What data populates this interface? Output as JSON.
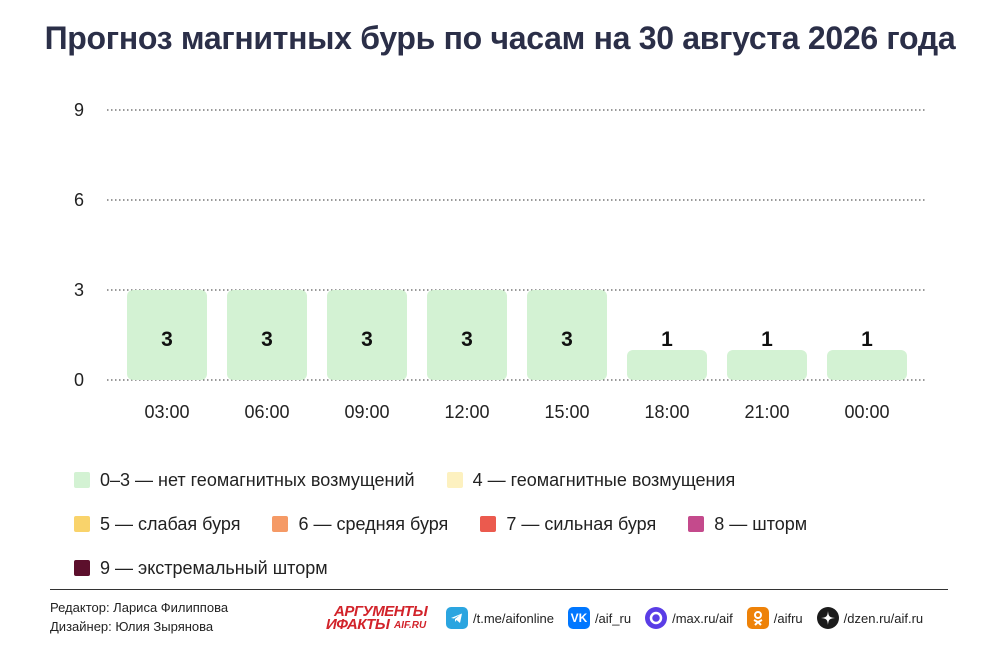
{
  "title": "Прогноз магнитных бурь по часам на 30 августа 2026 года",
  "chart_data": {
    "type": "bar",
    "title": "Прогноз магнитных бурь по часам на 30 августа 2026 года",
    "categories": [
      "03:00",
      "06:00",
      "09:00",
      "12:00",
      "15:00",
      "18:00",
      "21:00",
      "00:00"
    ],
    "values": [
      3,
      3,
      3,
      3,
      3,
      1,
      1,
      1
    ],
    "data_labels": [
      "3",
      "3",
      "3",
      "3",
      "3",
      "1",
      "1",
      "1"
    ],
    "yticks": [
      0,
      3,
      6,
      9
    ],
    "ylim": [
      0,
      9
    ],
    "grid": "dotted horizontal",
    "bar_color": "#d3f2d3",
    "xlabel": "",
    "ylabel": ""
  },
  "legend": [
    {
      "label": "0–3 — нет геомагнитных возмущений",
      "color": "#d3f2d3"
    },
    {
      "label": "4 — геомагнитные возмущения",
      "color": "#fdf1c0"
    },
    {
      "label": "5 — слабая буря",
      "color": "#f9d36b"
    },
    {
      "label": "6 — средняя буря",
      "color": "#f59a66"
    },
    {
      "label": "7 — сильная буря",
      "color": "#eb5a4e"
    },
    {
      "label": "8 — шторм",
      "color": "#c44a8c"
    },
    {
      "label": "9 — экстремальный шторм",
      "color": "#5c0f2c"
    }
  ],
  "footer": {
    "editor": "Редактор: Лариса Филиппова",
    "designer": "Дизайнер: Юлия Зырянова",
    "brand_line1": "АРГУМЕНТЫ",
    "brand_line2": "ИФАКТЫ",
    "brand_line3": "AIF.RU",
    "socials": [
      {
        "icon": "telegram-icon",
        "label": "/t.me/aifonline",
        "color": "#2ba5e0"
      },
      {
        "icon": "vk-icon",
        "label": "/aif_ru",
        "color": "#0077ff"
      },
      {
        "icon": "max-icon",
        "label": "/max.ru/aif",
        "color": "#5a3de6"
      },
      {
        "icon": "odnoklassniki-icon",
        "label": "/aifru",
        "color": "#ee8208"
      },
      {
        "icon": "dzen-icon",
        "label": "/dzen.ru/aif.ru",
        "color": "#1b1b1b"
      }
    ]
  }
}
